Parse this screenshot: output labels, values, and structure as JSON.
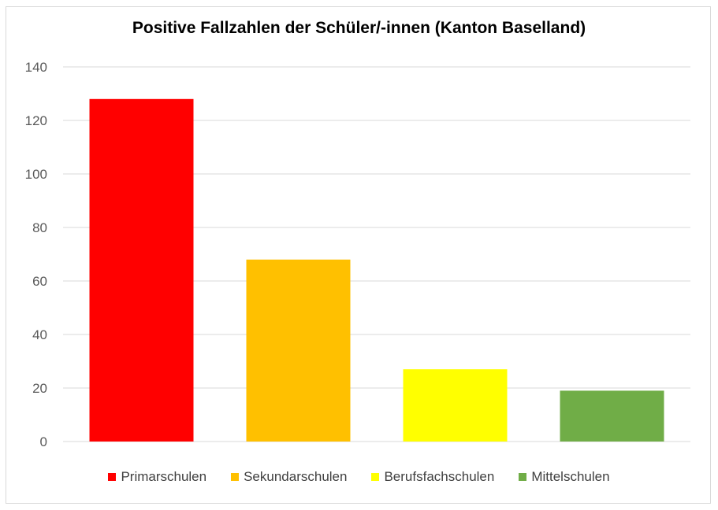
{
  "chart_data": {
    "type": "bar",
    "title": "Positive Fallzahlen der Schüler/-innen (Kanton Baselland)",
    "categories": [
      "Primarschulen",
      "Sekundarschulen",
      "Berufsfachschulen",
      "Mittelschulen"
    ],
    "values": [
      128,
      68,
      27,
      19
    ],
    "colors": [
      "#ff0000",
      "#ffc000",
      "#ffff00",
      "#70ad47"
    ],
    "ylim": [
      0,
      140
    ],
    "yticks": [
      0,
      20,
      40,
      60,
      80,
      100,
      120,
      140
    ],
    "grid": true,
    "legend_position": "bottom"
  }
}
